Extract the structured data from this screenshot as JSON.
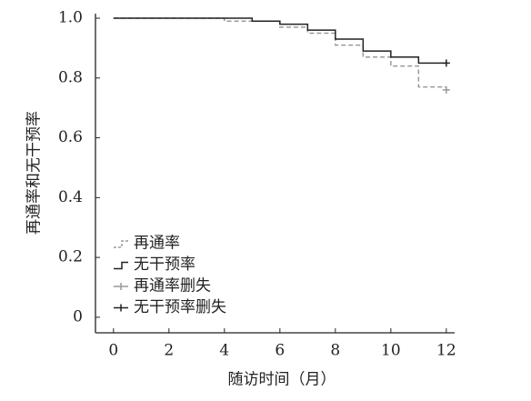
{
  "chart_data": {
    "type": "step",
    "xlabel": "随访时间（月）",
    "ylabel": "再通率和无干预率",
    "xlim": [
      -0.65,
      12.3
    ],
    "xticks": [
      0,
      2,
      4,
      6,
      8,
      10,
      12
    ],
    "ylim": [
      -0.052,
      1
    ],
    "yticks": [
      {
        "value": 1,
        "label": "1.0"
      },
      0.8,
      0.6,
      0.4,
      0.2,
      0
    ],
    "legend": "lower left",
    "series": [
      {
        "name": "再通率",
        "kind": "step",
        "dash": true,
        "color": "#9a9a9a",
        "x": [
          0,
          4,
          6,
          7,
          8,
          9,
          10,
          11,
          12
        ],
        "values": [
          1,
          0.99,
          0.97,
          0.95,
          0.91,
          0.87,
          0.84,
          0.77,
          0.77
        ]
      },
      {
        "name": "无干预率",
        "kind": "step",
        "dash": false,
        "color": "#222222",
        "x": [
          0,
          5,
          6,
          7,
          8,
          9,
          10,
          11,
          12
        ],
        "values": [
          1,
          0.99,
          0.98,
          0.96,
          0.93,
          0.89,
          0.87,
          0.85,
          0.85
        ]
      },
      {
        "name": "再通率删失",
        "kind": "censor",
        "color": "#9a9a9a",
        "x": [
          12
        ],
        "values": [
          0.76
        ]
      },
      {
        "name": "无干预率删失",
        "kind": "censor",
        "color": "#222222",
        "x": [
          12
        ],
        "values": [
          0.85
        ]
      }
    ]
  }
}
